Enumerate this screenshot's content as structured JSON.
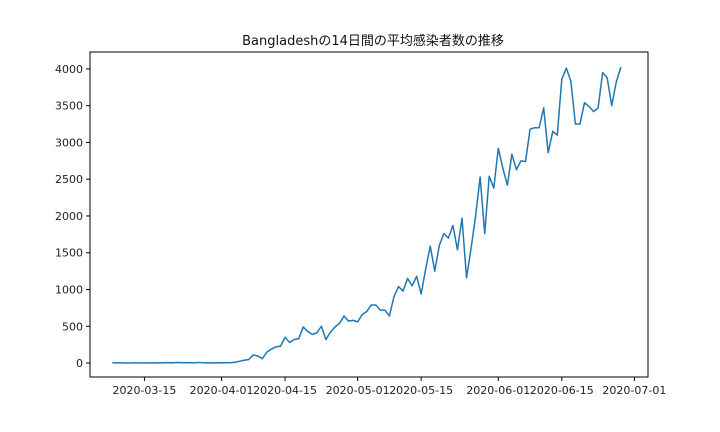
{
  "chart_data": {
    "type": "line",
    "title": "Bangladeshの14日間の平均感染者数の推移",
    "xlabel": "",
    "ylabel": "",
    "x_start": "2020-03-08",
    "x_ticks": [
      "2020-03-15",
      "2020-04-01",
      "2020-04-15",
      "2020-05-01",
      "2020-05-15",
      "2020-06-01",
      "2020-06-15",
      "2020-07-01"
    ],
    "y_ticks": [
      0,
      500,
      1000,
      1500,
      2000,
      2500,
      3000,
      3500,
      4000
    ],
    "xlim": [
      "2020-03-03",
      "2020-07-04"
    ],
    "ylim": [
      -190,
      4230
    ],
    "series": [
      {
        "color": "#1f77b4",
        "values": [
          3,
          2,
          2,
          1,
          1,
          2,
          2,
          1,
          2,
          2,
          3,
          2,
          5,
          2,
          7,
          5,
          4,
          6,
          2,
          8,
          3,
          2,
          3,
          2,
          3,
          4,
          5,
          10,
          25,
          38,
          48,
          110,
          95,
          60,
          150,
          190,
          220,
          230,
          350,
          280,
          320,
          330,
          490,
          430,
          390,
          410,
          500,
          320,
          420,
          490,
          540,
          640,
          570,
          580,
          560,
          660,
          700,
          790,
          790,
          720,
          720,
          640,
          900,
          1040,
          980,
          1150,
          1050,
          1180,
          940,
          1280,
          1590,
          1250,
          1600,
          1760,
          1700,
          1870,
          1540,
          1970,
          1160,
          1560,
          2000,
          2530,
          1760,
          2540,
          2380,
          2920,
          2650,
          2420,
          2840,
          2630,
          2750,
          2740,
          3180,
          3200,
          3200,
          3470,
          2860,
          3150,
          3100,
          3860,
          4010,
          3830,
          3250,
          3250,
          3540,
          3490,
          3420,
          3470,
          3950,
          3880,
          3500,
          3820,
          4020
        ]
      }
    ]
  }
}
